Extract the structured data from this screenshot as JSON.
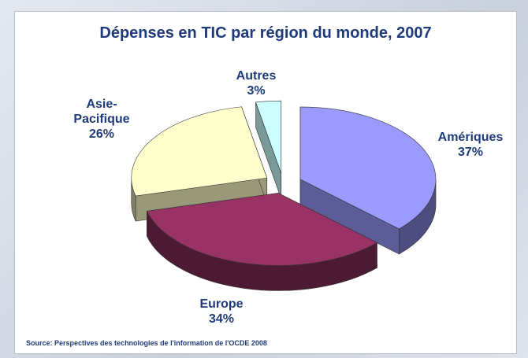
{
  "chart_data": {
    "type": "pie3d",
    "title": "Dépenses en TIC par région du monde, 2007",
    "categories": [
      "Amériques",
      "Europe",
      "Asie-Pacifique",
      "Autres"
    ],
    "values": [
      37,
      34,
      26,
      3
    ],
    "value_labels": [
      "37%",
      "34%",
      "26%",
      "3%"
    ],
    "colors": [
      "#9a9aff",
      "#993366",
      "#ffffcc",
      "#ccffff"
    ],
    "source": "Source: Perspectives des technologies de l'information de l'OCDE 2008"
  }
}
